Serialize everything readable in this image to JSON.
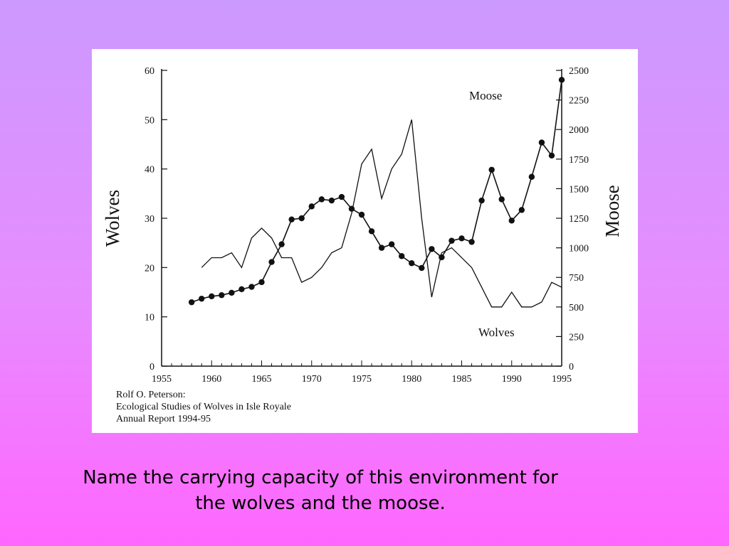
{
  "colors": {
    "background_top": "#cc99ff",
    "background_bottom": "#ff66ff",
    "chart_bg": "#ffffff",
    "ink": "#111111"
  },
  "chart_data": {
    "type": "line",
    "x": [
      1958,
      1959,
      1960,
      1961,
      1962,
      1963,
      1964,
      1965,
      1966,
      1967,
      1968,
      1969,
      1970,
      1971,
      1972,
      1973,
      1974,
      1975,
      1976,
      1977,
      1978,
      1979,
      1980,
      1981,
      1982,
      1983,
      1984,
      1985,
      1986,
      1987,
      1988,
      1989,
      1990,
      1991,
      1992,
      1993,
      1994,
      1995
    ],
    "xlim": [
      1955,
      1995
    ],
    "xticks": [
      "1955",
      "1960",
      "1965",
      "1970",
      "1975",
      "1980",
      "1985",
      "1990",
      "1995"
    ],
    "left_axis": {
      "label": "Wolves",
      "ylim": [
        0,
        60
      ],
      "ticks": [
        "0",
        "10",
        "20",
        "30",
        "40",
        "50",
        "60"
      ]
    },
    "right_axis": {
      "label": "Moose",
      "ylim": [
        0,
        2500
      ],
      "ticks": [
        "0",
        "250",
        "500",
        "750",
        "1000",
        "1250",
        "1500",
        "1750",
        "2000",
        "2250",
        "2500"
      ]
    },
    "series": [
      {
        "name": "Moose",
        "axis": "right",
        "marker": "dot",
        "x": [
          1958,
          1959,
          1960,
          1961,
          1962,
          1963,
          1964,
          1965,
          1966,
          1967,
          1968,
          1969,
          1970,
          1971,
          1972,
          1973,
          1974,
          1975,
          1976,
          1977,
          1978,
          1979,
          1980,
          1981,
          1982,
          1983,
          1984,
          1985,
          1986,
          1987,
          1988,
          1989,
          1990,
          1991,
          1992,
          1993,
          1994,
          1995
        ],
        "values": [
          540,
          570,
          590,
          600,
          620,
          650,
          670,
          710,
          880,
          1030,
          1240,
          1250,
          1350,
          1410,
          1400,
          1430,
          1330,
          1280,
          1140,
          1000,
          1030,
          930,
          870,
          830,
          990,
          920,
          1060,
          1080,
          1050,
          1400,
          1660,
          1410,
          1230,
          1320,
          1600,
          1890,
          1780,
          2420
        ]
      },
      {
        "name": "Wolves",
        "axis": "left",
        "marker": "none",
        "x": [
          1959,
          1960,
          1961,
          1962,
          1963,
          1964,
          1965,
          1966,
          1967,
          1968,
          1969,
          1970,
          1971,
          1972,
          1973,
          1974,
          1975,
          1976,
          1977,
          1978,
          1979,
          1980,
          1981,
          1982,
          1983,
          1984,
          1985,
          1986,
          1987,
          1988,
          1989,
          1990,
          1991,
          1992,
          1993,
          1994,
          1995
        ],
        "values": [
          20,
          22,
          22,
          23,
          20,
          26,
          28,
          26,
          22,
          22,
          17,
          18,
          20,
          23,
          24,
          31,
          41,
          44,
          34,
          40,
          43,
          50,
          30,
          14,
          23,
          24,
          22,
          20,
          16,
          12,
          12,
          15,
          12,
          12,
          13,
          17,
          16
        ]
      }
    ],
    "citation": [
      "Rolf O. Peterson:",
      "Ecological Studies of Wolves in Isle Royale",
      "Annual Report 1994-95"
    ]
  },
  "question": {
    "line1": "Name the carrying capacity of this environment for",
    "line2": "the wolves and the moose."
  }
}
